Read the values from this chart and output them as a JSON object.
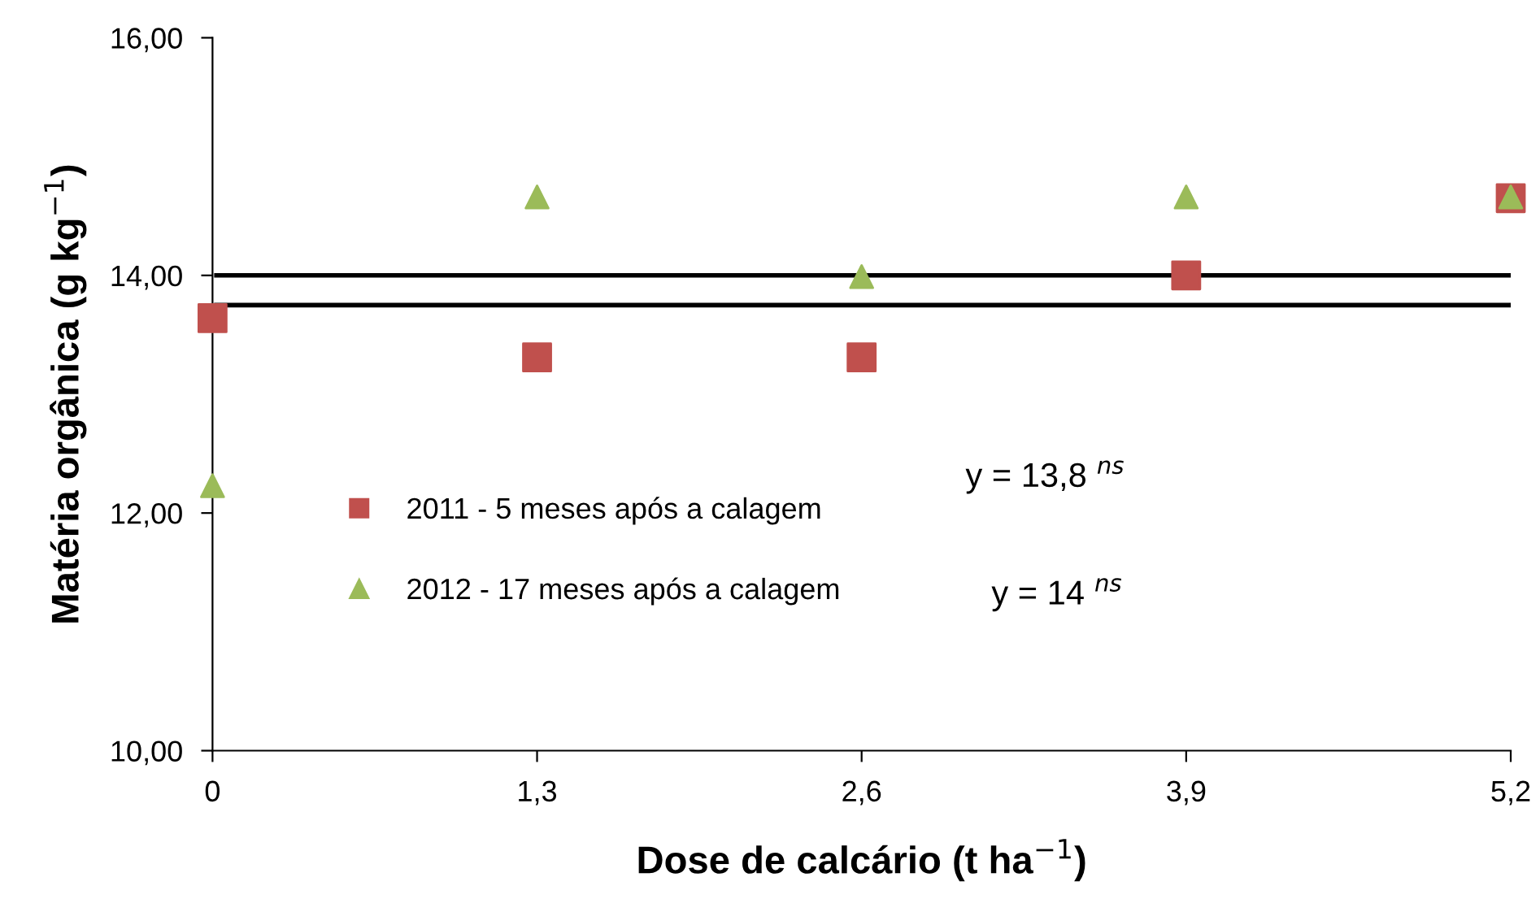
{
  "chart_data": {
    "type": "scatter",
    "xlabel": "Dose de calcário (t ha$^{−1}$)",
    "ylabel": "Matéria orgânica (g kg$^{−1}$)",
    "x": [
      0,
      1.3,
      2.6,
      3.9,
      5.2
    ],
    "series": [
      {
        "name": "2011 - 5 meses após a calagem",
        "color": "#c0504d",
        "marker": "square",
        "values": [
          13.64,
          13.31,
          13.31,
          14.0,
          14.65
        ]
      },
      {
        "name": "2012 - 17 meses após a calagem",
        "color": "#9bbb59",
        "marker": "triangle",
        "values": [
          12.23,
          14.66,
          13.99,
          14.66,
          14.66
        ]
      }
    ],
    "xlim": [
      0,
      5.2
    ],
    "xticks": [
      0,
      {
        "value": 1.3,
        "label": "1,3"
      },
      {
        "value": 2.6,
        "label": "2,6"
      },
      {
        "value": 3.9,
        "label": "3,9"
      },
      {
        "value": 5.2,
        "label": "5,2"
      }
    ],
    "ylim": [
      10,
      16
    ],
    "yticks": [
      {
        "value": 10,
        "label": "10,00"
      },
      {
        "value": 12,
        "label": "12,00"
      },
      {
        "value": 14,
        "label": "14,00"
      },
      {
        "value": 16,
        "label": "16,00"
      }
    ],
    "ref_lines": [
      {
        "axis": "y",
        "value": 14.0,
        "color": "#000000"
      },
      {
        "axis": "y",
        "value": 13.75,
        "color": "#000000"
      }
    ],
    "annotations": [
      "y = 13,8 $^{ns}$",
      "y = 14 $^{ns}$"
    ],
    "legend": "left",
    "grid": false
  }
}
